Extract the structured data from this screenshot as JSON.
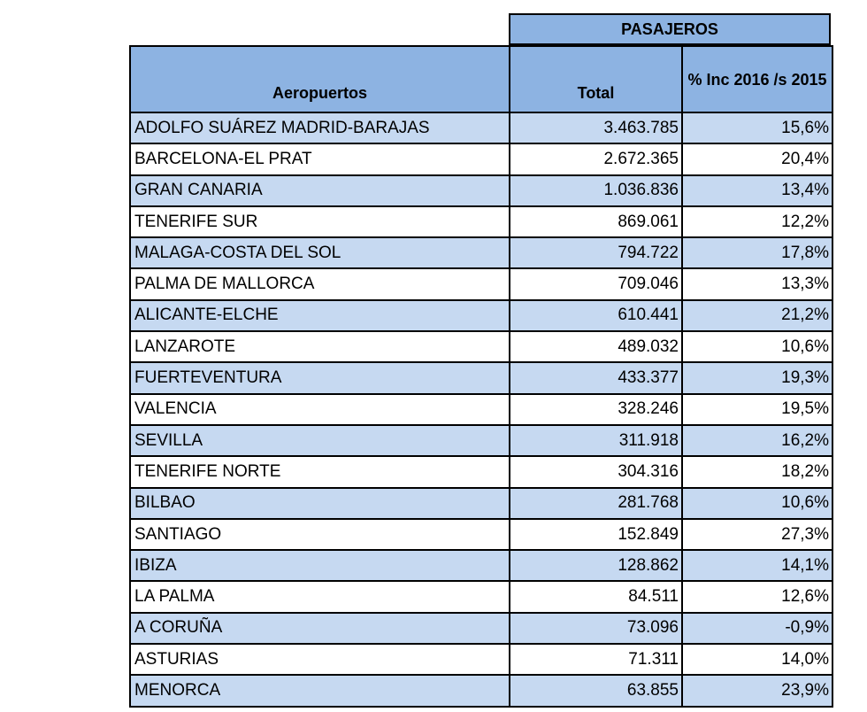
{
  "table": {
    "super_header": "PASAJEROS",
    "headers": {
      "airport": "Aeropuertos",
      "total": "Total",
      "inc": "% Inc 2016 /s 2015"
    },
    "rows": [
      {
        "airport": "ADOLFO SUÁREZ MADRID-BARAJAS",
        "total": "3.463.785",
        "inc": "15,6%"
      },
      {
        "airport": "BARCELONA-EL PRAT",
        "total": "2.672.365",
        "inc": "20,4%"
      },
      {
        "airport": "GRAN CANARIA",
        "total": "1.036.836",
        "inc": "13,4%"
      },
      {
        "airport": "TENERIFE SUR",
        "total": "869.061",
        "inc": "12,2%"
      },
      {
        "airport": "MALAGA-COSTA DEL SOL",
        "total": "794.722",
        "inc": "17,8%"
      },
      {
        "airport": "PALMA DE MALLORCA",
        "total": "709.046",
        "inc": "13,3%"
      },
      {
        "airport": "ALICANTE-ELCHE",
        "total": "610.441",
        "inc": "21,2%"
      },
      {
        "airport": "LANZAROTE",
        "total": "489.032",
        "inc": "10,6%"
      },
      {
        "airport": "FUERTEVENTURA",
        "total": "433.377",
        "inc": "19,3%"
      },
      {
        "airport": "VALENCIA",
        "total": "328.246",
        "inc": "19,5%"
      },
      {
        "airport": "SEVILLA",
        "total": "311.918",
        "inc": "16,2%"
      },
      {
        "airport": "TENERIFE NORTE",
        "total": "304.316",
        "inc": "18,2%"
      },
      {
        "airport": "BILBAO",
        "total": "281.768",
        "inc": "10,6%"
      },
      {
        "airport": "SANTIAGO",
        "total": "152.849",
        "inc": "27,3%"
      },
      {
        "airport": "IBIZA",
        "total": "128.862",
        "inc": "14,1%"
      },
      {
        "airport": "LA PALMA",
        "total": "84.511",
        "inc": "12,6%"
      },
      {
        "airport": "A CORUÑA",
        "total": "73.096",
        "inc": "-0,9%"
      },
      {
        "airport": "ASTURIAS",
        "total": "71.311",
        "inc": "14,0%"
      },
      {
        "airport": "MENORCA",
        "total": "63.855",
        "inc": "23,9%"
      }
    ],
    "colors": {
      "header": "#8db3e2",
      "band": "#c6d9f1",
      "plain": "#ffffff",
      "border": "#000000"
    }
  }
}
